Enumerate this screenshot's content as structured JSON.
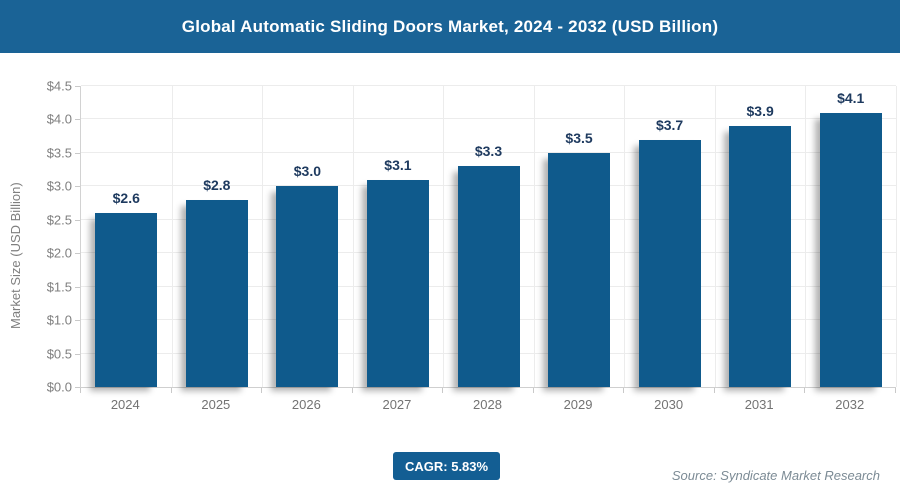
{
  "header": {
    "title": "Global Automatic Sliding Doors Market, 2024 - 2032 (USD Billion)",
    "background": "#1a6396",
    "text_color": "#ffffff"
  },
  "chart_data": {
    "type": "bar",
    "title": "Global Automatic Sliding Doors Market, 2024 - 2032 (USD Billion)",
    "categories": [
      "2024",
      "2025",
      "2026",
      "2027",
      "2028",
      "2029",
      "2030",
      "2031",
      "2032"
    ],
    "values": [
      2.6,
      2.8,
      3.0,
      3.1,
      3.3,
      3.5,
      3.7,
      3.9,
      4.1
    ],
    "bar_labels": [
      "$2.6",
      "$2.8",
      "$3.0",
      "$3.1",
      "$3.3",
      "$3.5",
      "$3.7",
      "$3.9",
      "$4.1"
    ],
    "xlabel": "",
    "ylabel": "Market Size (USD Billion)",
    "ylim": [
      0,
      4.5
    ],
    "ytick_step": 0.5,
    "ytick_labels": [
      "$0.0",
      "$0.5",
      "$1.0",
      "$1.5",
      "$2.0",
      "$2.5",
      "$3.0",
      "$3.5",
      "$4.0",
      "$4.5"
    ],
    "grid": true,
    "legend": false,
    "bar_color": "#0f5a8c",
    "label_color": "#1e3a5f"
  },
  "footer": {
    "cagr_label": "CAGR: 5.83%",
    "cagr_bg": "#135e93",
    "source": "Source: Syndicate Market Research"
  }
}
